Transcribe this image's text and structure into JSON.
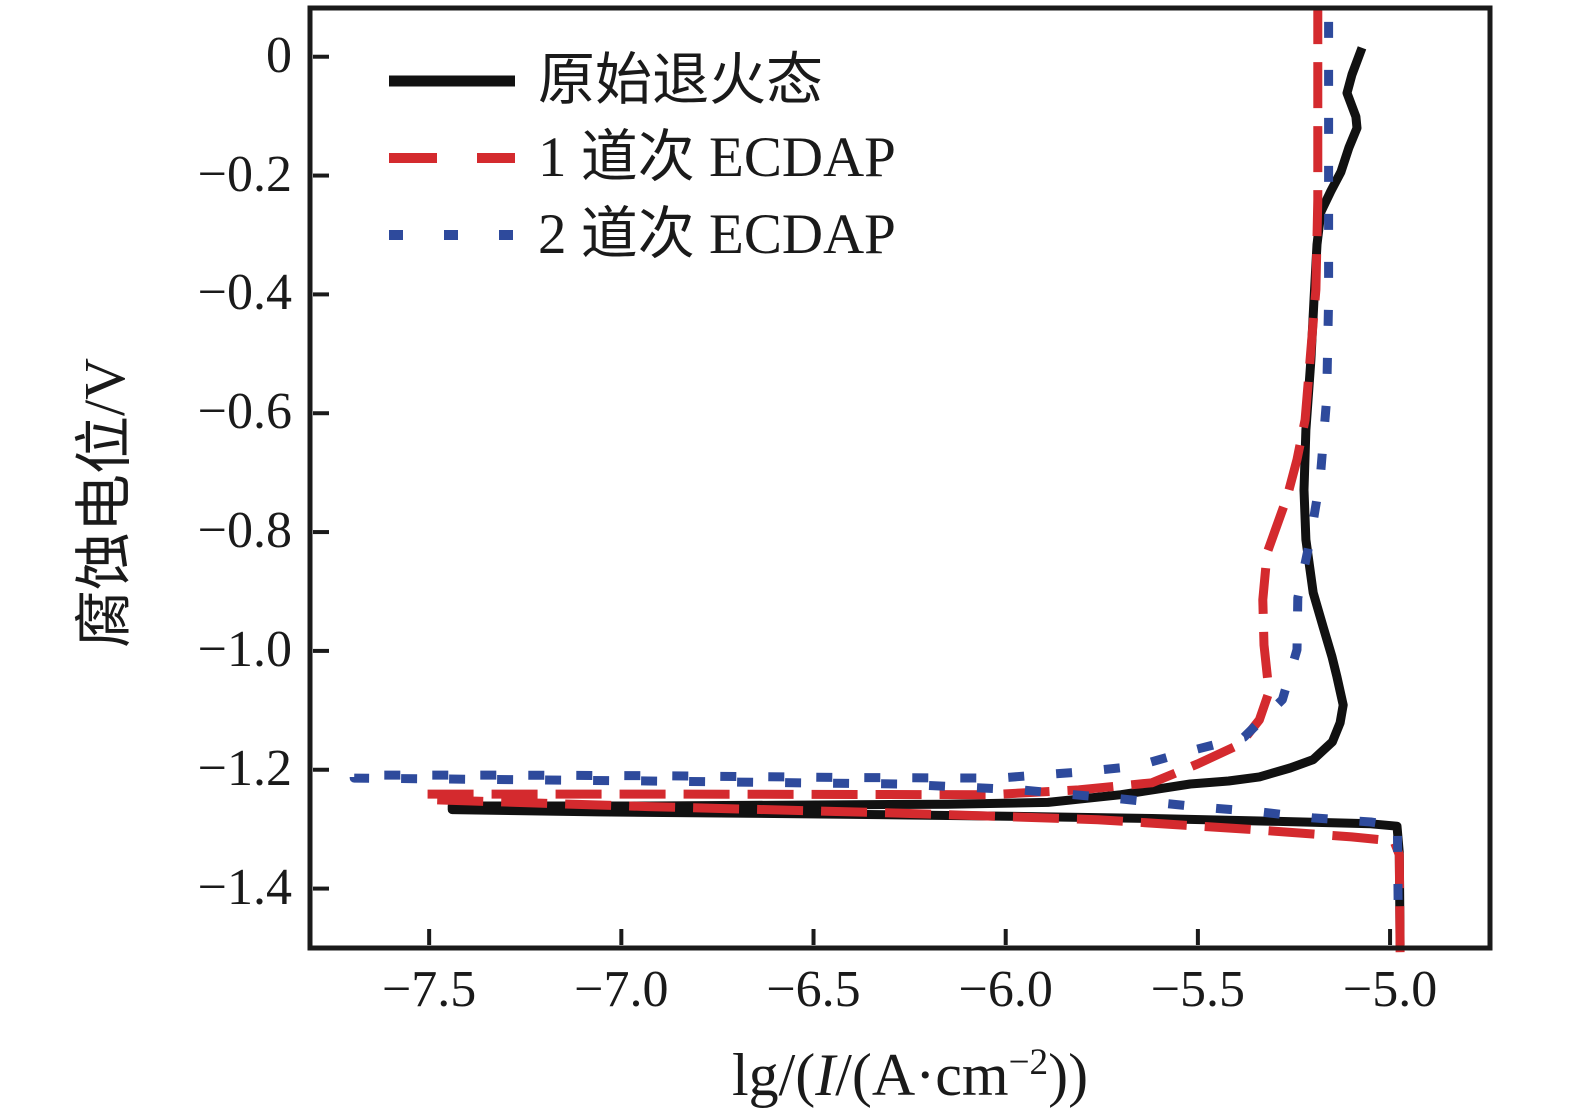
{
  "figure": {
    "background": "#ffffff",
    "frame_color": "#1a1a1a"
  },
  "legend": {
    "items": [
      {
        "label": "原始退火态",
        "color": "#111111",
        "line_style": "solid"
      },
      {
        "label": "1 道次 ECDAP",
        "color": "#d42a2e",
        "line_style": "dashed"
      },
      {
        "label": "2 道次 ECDAP",
        "color": "#2e4a9c",
        "line_style": "dotted"
      }
    ]
  },
  "chart_data": {
    "type": "line",
    "title": "",
    "xlabel_plain": "lg/(I/(A·cm⁻²))",
    "xlabel_parts": {
      "prefix": "lg/(",
      "variable": "I",
      "mid": "/(A·cm",
      "superscript": "−2",
      "suffix": "))"
    },
    "ylabel": "腐蚀电位/V",
    "xlim": [
      -7.81,
      -4.74
    ],
    "ylim": [
      -1.5,
      0.082
    ],
    "grid": false,
    "legend_position": "upper left inside",
    "x_ticks": [
      -7.5,
      -7.0,
      -6.5,
      -6.0,
      -5.5,
      -5.0
    ],
    "x_tick_labels": [
      "−7.5",
      "−7.0",
      "−6.5",
      "−6.0",
      "−5.5",
      "−5.0"
    ],
    "y_ticks": [
      0,
      -0.2,
      -0.4,
      -0.6,
      -0.8,
      -1.0,
      -1.2,
      -1.4
    ],
    "y_tick_labels": [
      "0",
      "−0.2",
      "−0.4",
      "−0.6",
      "−0.8",
      "−1.0",
      "−1.2",
      "−1.4"
    ],
    "series": [
      {
        "name": "原始退火态",
        "color": "#111111",
        "line_style": "solid",
        "points": [
          [
            -4.974,
            -1.495
          ],
          [
            -4.976,
            -1.34
          ],
          [
            -4.982,
            -1.295
          ],
          [
            -5.05,
            -1.291
          ],
          [
            -5.29,
            -1.287
          ],
          [
            -5.62,
            -1.282
          ],
          [
            -6.02,
            -1.278
          ],
          [
            -6.54,
            -1.274
          ],
          [
            -7.06,
            -1.271
          ],
          [
            -7.44,
            -1.267
          ],
          [
            -7.44,
            -1.261
          ],
          [
            -6.93,
            -1.261
          ],
          [
            -6.15,
            -1.258
          ],
          [
            -5.89,
            -1.255
          ],
          [
            -5.7,
            -1.242
          ],
          [
            -5.52,
            -1.224
          ],
          [
            -5.42,
            -1.219
          ],
          [
            -5.34,
            -1.212
          ],
          [
            -5.26,
            -1.197
          ],
          [
            -5.2,
            -1.183
          ],
          [
            -5.15,
            -1.153
          ],
          [
            -5.13,
            -1.121
          ],
          [
            -5.122,
            -1.091
          ],
          [
            -5.138,
            -1.044
          ],
          [
            -5.151,
            -1.01
          ],
          [
            -5.174,
            -0.96
          ],
          [
            -5.2,
            -0.902
          ],
          [
            -5.219,
            -0.813
          ],
          [
            -5.224,
            -0.729
          ],
          [
            -5.219,
            -0.628
          ],
          [
            -5.206,
            -0.51
          ],
          [
            -5.198,
            -0.409
          ],
          [
            -5.19,
            -0.316
          ],
          [
            -5.18,
            -0.261
          ],
          [
            -5.154,
            -0.226
          ],
          [
            -5.128,
            -0.194
          ],
          [
            -5.107,
            -0.153
          ],
          [
            -5.086,
            -0.12
          ],
          [
            -5.089,
            -0.101
          ],
          [
            -5.112,
            -0.061
          ],
          [
            -5.099,
            -0.03
          ],
          [
            -5.073,
            0.015
          ]
        ]
      },
      {
        "name": "1 道次 ECDAP",
        "color": "#d42a2e",
        "line_style": "dashed",
        "points": [
          [
            -4.974,
            -1.507
          ],
          [
            -4.976,
            -1.343
          ],
          [
            -4.99,
            -1.32
          ],
          [
            -5.1,
            -1.313
          ],
          [
            -5.37,
            -1.3
          ],
          [
            -5.76,
            -1.284
          ],
          [
            -6.28,
            -1.273
          ],
          [
            -6.93,
            -1.262
          ],
          [
            -7.508,
            -1.25
          ],
          [
            -7.508,
            -1.241
          ],
          [
            -6.93,
            -1.241
          ],
          [
            -6.04,
            -1.242
          ],
          [
            -5.81,
            -1.234
          ],
          [
            -5.62,
            -1.222
          ],
          [
            -5.5,
            -1.19
          ],
          [
            -5.39,
            -1.157
          ],
          [
            -5.34,
            -1.116
          ],
          [
            -5.315,
            -1.069
          ],
          [
            -5.328,
            -0.99
          ],
          [
            -5.331,
            -0.914
          ],
          [
            -5.32,
            -0.835
          ],
          [
            -5.268,
            -0.741
          ],
          [
            -5.242,
            -0.678
          ],
          [
            -5.221,
            -0.611
          ],
          [
            -5.206,
            -0.493
          ],
          [
            -5.193,
            -0.392
          ],
          [
            -5.188,
            -0.241
          ],
          [
            -5.188,
            0.082
          ]
        ]
      },
      {
        "name": "2 道次 ECDAP",
        "color": "#2e4a9c",
        "line_style": "dotted",
        "points": [
          [
            -4.979,
            -1.419
          ],
          [
            -4.981,
            -1.295
          ],
          [
            -5.05,
            -1.288
          ],
          [
            -5.2,
            -1.281
          ],
          [
            -5.34,
            -1.271
          ],
          [
            -5.49,
            -1.263
          ],
          [
            -5.7,
            -1.249
          ],
          [
            -5.96,
            -1.234
          ],
          [
            -6.28,
            -1.224
          ],
          [
            -6.93,
            -1.219
          ],
          [
            -7.695,
            -1.214
          ],
          [
            -7.695,
            -1.209
          ],
          [
            -7.32,
            -1.209
          ],
          [
            -6.93,
            -1.21
          ],
          [
            -6.41,
            -1.213
          ],
          [
            -6.02,
            -1.214
          ],
          [
            -5.81,
            -1.204
          ],
          [
            -5.66,
            -1.194
          ],
          [
            -5.53,
            -1.17
          ],
          [
            -5.38,
            -1.145
          ],
          [
            -5.28,
            -1.082
          ],
          [
            -5.242,
            -0.998
          ],
          [
            -5.24,
            -0.911
          ],
          [
            -5.208,
            -0.813
          ],
          [
            -5.182,
            -0.712
          ],
          [
            -5.165,
            -0.577
          ],
          [
            -5.16,
            -0.409
          ],
          [
            -5.16,
            0.082
          ]
        ]
      }
    ]
  }
}
